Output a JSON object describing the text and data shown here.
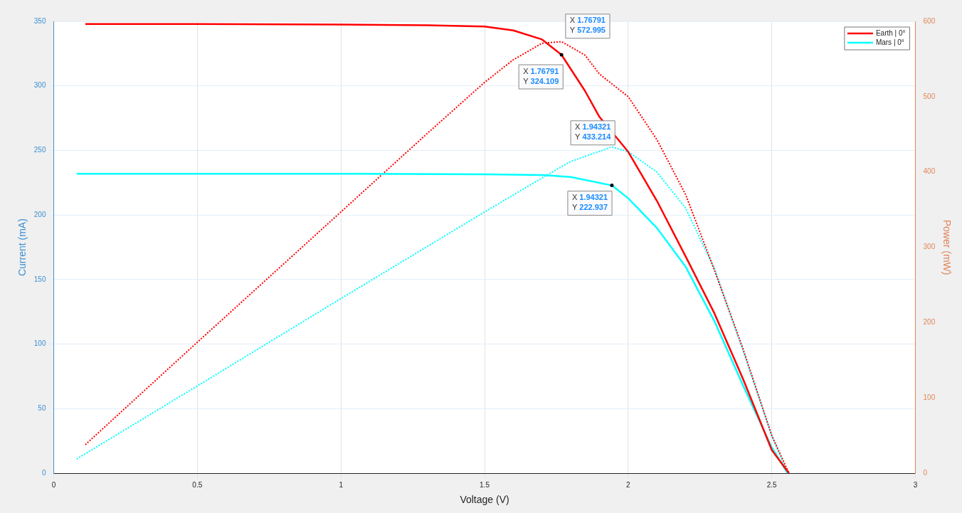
{
  "chart_data": {
    "type": "line",
    "xlabel": "Voltage (V)",
    "ylabel": "Current (mA)",
    "y2label": "Power (mW)",
    "xlim": [
      0,
      3
    ],
    "xticks": [
      0,
      0.5,
      1,
      1.5,
      2,
      2.5,
      3
    ],
    "ylim": [
      0,
      350
    ],
    "yticks": [
      0,
      50,
      100,
      150,
      200,
      250,
      300,
      350
    ],
    "y2lim": [
      0,
      600
    ],
    "y2ticks": [
      0,
      100,
      200,
      300,
      400,
      500,
      600
    ],
    "grid": true,
    "legend": "top right",
    "marker": "none",
    "series": [
      {
        "name": "Earth | 0°",
        "color": "#ff0000",
        "line_style": "solid",
        "x": [
          0.11,
          0.5,
          1.0,
          1.3,
          1.5,
          1.6,
          1.7,
          1.76791,
          1.85,
          1.9,
          2.0,
          2.1,
          2.2,
          2.3,
          2.4,
          2.5,
          2.56
        ],
        "values": [
          348,
          348,
          347.5,
          347,
          346,
          343,
          336,
          324.109,
          296,
          276,
          249,
          211,
          168,
          124,
          73,
          18,
          0
        ]
      },
      {
        "name": "Mars | 0°",
        "color": "#00ffff",
        "line_style": "solid",
        "x": [
          0.08,
          0.5,
          1.0,
          1.5,
          1.7,
          1.8,
          1.94321,
          2.0,
          2.1,
          2.2,
          2.3,
          2.4,
          2.5,
          2.555
        ],
        "values": [
          232,
          232,
          232,
          231.5,
          231,
          229.5,
          222.937,
          213,
          190,
          160,
          118,
          68,
          20,
          0
        ]
      },
      {
        "color": "#ff0000",
        "line_style": "dotted",
        "axis": "y2",
        "x": [
          0.11,
          0.5,
          1.0,
          1.3,
          1.5,
          1.6,
          1.7,
          1.76791,
          1.85,
          1.9,
          2.0,
          2.1,
          2.2,
          2.3,
          2.4,
          2.5,
          2.56
        ],
        "values": [
          38,
          174,
          347,
          451,
          519,
          549,
          571,
          572.995,
          555,
          530,
          500,
          443,
          370,
          270,
          165,
          50,
          0
        ]
      },
      {
        "color": "#00ffff",
        "line_style": "dotted",
        "axis": "y2",
        "x": [
          0.08,
          0.5,
          1.0,
          1.5,
          1.7,
          1.8,
          1.94321,
          2.0,
          2.1,
          2.2,
          2.3,
          2.4,
          2.5,
          2.555
        ],
        "values": [
          19,
          116,
          232,
          347,
          392,
          414,
          433.214,
          427,
          400,
          352,
          272,
          163,
          50,
          0
        ]
      }
    ],
    "annotations": [
      "X 1.76791\nY 572.995",
      {
        "text": "X 1.76791\nY 324.109",
        "x": 1.76791,
        "y": 324.109
      },
      "X 1.94321\nY 433.214",
      {
        "text": "X 1.94321\nY 222.937",
        "x": 1.94321,
        "y": 222.937
      }
    ]
  }
}
